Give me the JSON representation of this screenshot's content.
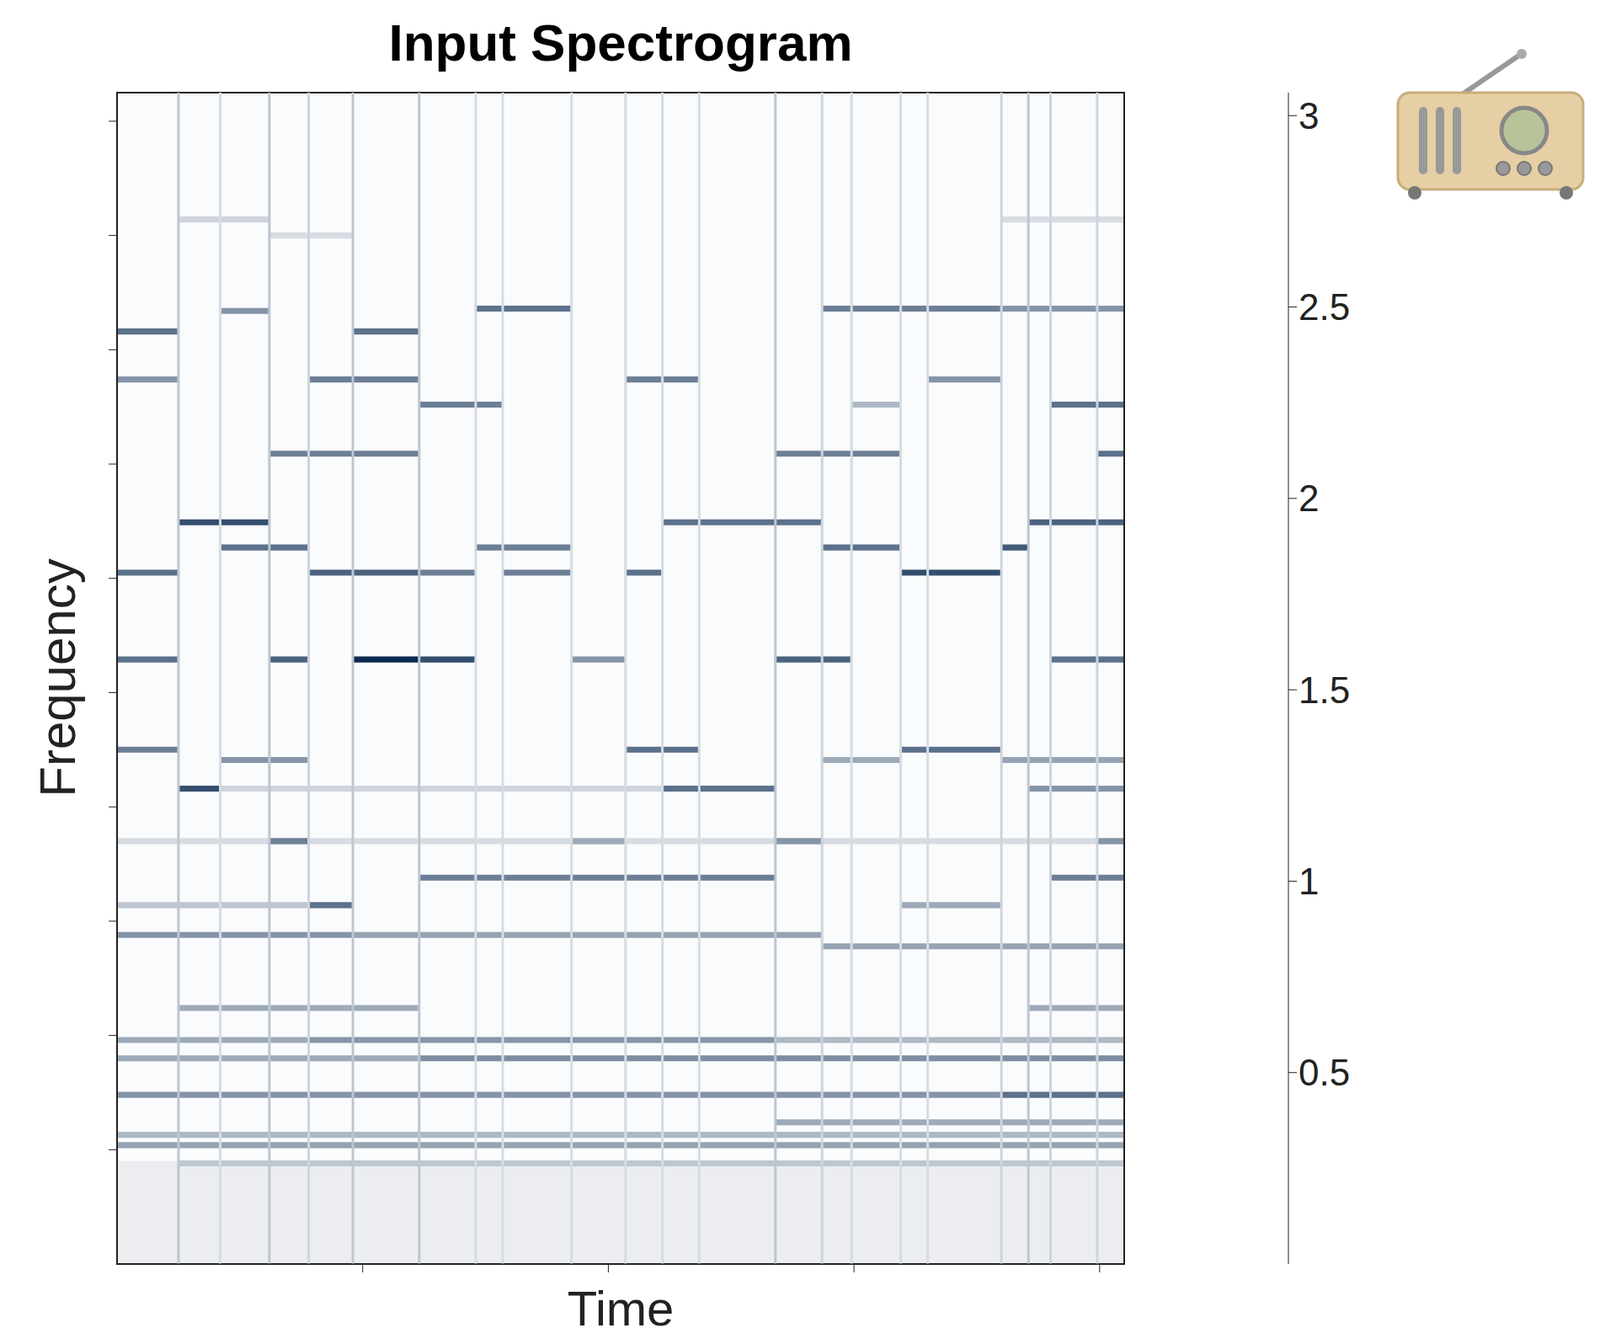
{
  "chart_data": {
    "type": "heatmap",
    "title": "Input Spectrogram",
    "x_label": "Time",
    "y_label": "Frequency",
    "xlim": [
      0,
      4.1
    ],
    "xticks": [
      1,
      2,
      3,
      4
    ],
    "ylim": [
      0,
      10.25
    ],
    "yticks": [
      1,
      2,
      3,
      4,
      5,
      6,
      7,
      8,
      9,
      10
    ],
    "tick_labels": false,
    "color": "#06264d",
    "color_range": [
      0,
      3.06
    ],
    "color_ticks": [
      0.5,
      1,
      1.5,
      2,
      2.5,
      3
    ],
    "background": [
      {
        "t0": 0,
        "t1": 4.1,
        "f0": 0,
        "f1": 10.25,
        "v": 0.06
      },
      {
        "t0": 0,
        "t1": 4.1,
        "f0": 0,
        "f1": 0.9,
        "v": 0.25
      }
    ],
    "onsets": [
      {
        "t": 0.25,
        "v": 0.8
      },
      {
        "t": 0.42,
        "v": 0.5
      },
      {
        "t": 0.62,
        "v": 0.8
      },
      {
        "t": 0.78,
        "v": 0.6
      },
      {
        "t": 0.96,
        "v": 0.8
      },
      {
        "t": 1.23,
        "v": 0.8
      },
      {
        "t": 1.46,
        "v": 0.5
      },
      {
        "t": 1.57,
        "v": 0.5
      },
      {
        "t": 1.85,
        "v": 0.5
      },
      {
        "t": 2.07,
        "v": 0.5
      },
      {
        "t": 2.22,
        "v": 0.5
      },
      {
        "t": 2.37,
        "v": 0.5
      },
      {
        "t": 2.68,
        "v": 0.8
      },
      {
        "t": 2.87,
        "v": 0.6
      },
      {
        "t": 2.99,
        "v": 0.5
      },
      {
        "t": 3.19,
        "v": 0.5
      },
      {
        "t": 3.3,
        "v": 0.5
      },
      {
        "t": 3.6,
        "v": 0.6
      },
      {
        "t": 3.71,
        "v": 0.8
      },
      {
        "t": 3.8,
        "v": 0.6
      },
      {
        "t": 3.99,
        "v": 0.6
      }
    ],
    "lines": [
      {
        "t0": 0.25,
        "t1": 0.62,
        "f": 9.14,
        "v": 0.6
      },
      {
        "t0": 3.6,
        "t1": 4.1,
        "f": 9.14,
        "v": 0.5
      },
      {
        "t0": 0.62,
        "t1": 0.96,
        "f": 9.0,
        "v": 0.5
      },
      {
        "t0": 0,
        "t1": 0.25,
        "f": 8.16,
        "v": 2.0
      },
      {
        "t0": 0.96,
        "t1": 1.23,
        "f": 8.16,
        "v": 2.0
      },
      {
        "t0": 0.42,
        "t1": 0.62,
        "f": 8.34,
        "v": 1.5
      },
      {
        "t0": 1.46,
        "t1": 1.85,
        "f": 8.36,
        "v": 2.0
      },
      {
        "t0": 2.87,
        "t1": 3.6,
        "f": 8.36,
        "v": 1.8
      },
      {
        "t0": 3.6,
        "t1": 4.1,
        "f": 8.36,
        "v": 1.5
      },
      {
        "t0": 0,
        "t1": 0.25,
        "f": 7.74,
        "v": 1.5
      },
      {
        "t0": 0.78,
        "t1": 1.23,
        "f": 7.74,
        "v": 1.8
      },
      {
        "t0": 2.07,
        "t1": 2.37,
        "f": 7.74,
        "v": 1.8
      },
      {
        "t0": 3.3,
        "t1": 3.6,
        "f": 7.74,
        "v": 1.5
      },
      {
        "t0": 1.23,
        "t1": 1.57,
        "f": 7.52,
        "v": 1.8
      },
      {
        "t0": 2.99,
        "t1": 3.19,
        "f": 7.52,
        "v": 1.0
      },
      {
        "t0": 3.8,
        "t1": 4.1,
        "f": 7.52,
        "v": 2.0
      },
      {
        "t0": 0.62,
        "t1": 1.23,
        "f": 7.09,
        "v": 1.8
      },
      {
        "t0": 2.68,
        "t1": 3.19,
        "f": 7.09,
        "v": 1.8
      },
      {
        "t0": 3.99,
        "t1": 4.1,
        "f": 7.09,
        "v": 2.0
      },
      {
        "t0": 0.25,
        "t1": 0.62,
        "f": 6.49,
        "v": 2.5
      },
      {
        "t0": 2.22,
        "t1": 2.87,
        "f": 6.49,
        "v": 2.0
      },
      {
        "t0": 3.71,
        "t1": 4.1,
        "f": 6.49,
        "v": 2.2
      },
      {
        "t0": 0.42,
        "t1": 0.78,
        "f": 6.27,
        "v": 2.0
      },
      {
        "t0": 1.46,
        "t1": 1.85,
        "f": 6.27,
        "v": 1.8
      },
      {
        "t0": 2.87,
        "t1": 3.19,
        "f": 6.27,
        "v": 2.0
      },
      {
        "t0": 3.6,
        "t1": 3.71,
        "f": 6.27,
        "v": 2.3
      },
      {
        "t0": 0,
        "t1": 0.25,
        "f": 6.05,
        "v": 2.0
      },
      {
        "t0": 0.78,
        "t1": 1.23,
        "f": 6.05,
        "v": 2.2
      },
      {
        "t0": 1.23,
        "t1": 1.46,
        "f": 6.05,
        "v": 1.8
      },
      {
        "t0": 1.57,
        "t1": 1.85,
        "f": 6.05,
        "v": 1.8
      },
      {
        "t0": 2.07,
        "t1": 2.22,
        "f": 6.05,
        "v": 2.0
      },
      {
        "t0": 3.19,
        "t1": 3.6,
        "f": 6.05,
        "v": 2.5
      },
      {
        "t0": 0,
        "t1": 0.25,
        "f": 5.29,
        "v": 2.0
      },
      {
        "t0": 0.62,
        "t1": 0.78,
        "f": 5.29,
        "v": 2.2
      },
      {
        "t0": 0.96,
        "t1": 1.23,
        "f": 5.29,
        "v": 3.0
      },
      {
        "t0": 1.23,
        "t1": 1.46,
        "f": 5.29,
        "v": 2.5
      },
      {
        "t0": 1.85,
        "t1": 2.07,
        "f": 5.29,
        "v": 1.5
      },
      {
        "t0": 2.68,
        "t1": 2.99,
        "f": 5.29,
        "v": 2.2
      },
      {
        "t0": 3.8,
        "t1": 4.1,
        "f": 5.29,
        "v": 2.0
      },
      {
        "t0": 0,
        "t1": 0.25,
        "f": 4.5,
        "v": 1.8
      },
      {
        "t0": 2.07,
        "t1": 2.37,
        "f": 4.5,
        "v": 2.0
      },
      {
        "t0": 3.19,
        "t1": 3.6,
        "f": 4.5,
        "v": 2.0
      },
      {
        "t0": 0.42,
        "t1": 0.78,
        "f": 4.41,
        "v": 1.5
      },
      {
        "t0": 2.87,
        "t1": 3.19,
        "f": 4.41,
        "v": 1.2
      },
      {
        "t0": 3.6,
        "t1": 4.1,
        "f": 4.41,
        "v": 1.3
      },
      {
        "t0": 0.25,
        "t1": 0.42,
        "f": 4.16,
        "v": 2.5
      },
      {
        "t0": 0.42,
        "t1": 2.22,
        "f": 4.16,
        "v": 0.6
      },
      {
        "t0": 2.22,
        "t1": 2.68,
        "f": 4.16,
        "v": 2.0
      },
      {
        "t0": 3.71,
        "t1": 4.1,
        "f": 4.16,
        "v": 1.5
      },
      {
        "t0": 0,
        "t1": 4.1,
        "f": 3.7,
        "v": 0.5
      },
      {
        "t0": 0.62,
        "t1": 0.78,
        "f": 3.7,
        "v": 1.8
      },
      {
        "t0": 1.85,
        "t1": 2.07,
        "f": 3.7,
        "v": 1.2
      },
      {
        "t0": 2.68,
        "t1": 2.87,
        "f": 3.7,
        "v": 1.5
      },
      {
        "t0": 3.99,
        "t1": 4.1,
        "f": 3.7,
        "v": 1.5
      },
      {
        "t0": 1.23,
        "t1": 2.68,
        "f": 3.38,
        "v": 1.8
      },
      {
        "t0": 3.8,
        "t1": 4.1,
        "f": 3.38,
        "v": 1.8
      },
      {
        "t0": 0,
        "t1": 0.78,
        "f": 3.14,
        "v": 0.8
      },
      {
        "t0": 0.78,
        "t1": 0.96,
        "f": 3.14,
        "v": 2.0
      },
      {
        "t0": 3.19,
        "t1": 3.6,
        "f": 3.14,
        "v": 1.2
      },
      {
        "t0": 0,
        "t1": 0.96,
        "f": 2.88,
        "v": 1.5
      },
      {
        "t0": 0.96,
        "t1": 2.87,
        "f": 2.88,
        "v": 1.3
      },
      {
        "t0": 2.87,
        "t1": 4.1,
        "f": 2.78,
        "v": 1.3
      },
      {
        "t0": 0.25,
        "t1": 1.23,
        "f": 2.24,
        "v": 1.2
      },
      {
        "t0": 3.71,
        "t1": 4.1,
        "f": 2.24,
        "v": 1.2
      },
      {
        "t0": 0,
        "t1": 0.78,
        "f": 1.96,
        "v": 1.2
      },
      {
        "t0": 0.78,
        "t1": 2.68,
        "f": 1.96,
        "v": 1.5
      },
      {
        "t0": 2.68,
        "t1": 4.1,
        "f": 1.96,
        "v": 1.0
      },
      {
        "t0": 0,
        "t1": 1.23,
        "f": 1.8,
        "v": 1.2
      },
      {
        "t0": 1.23,
        "t1": 4.1,
        "f": 1.8,
        "v": 1.6
      },
      {
        "t0": 0,
        "t1": 3.6,
        "f": 1.48,
        "v": 1.5
      },
      {
        "t0": 3.6,
        "t1": 4.1,
        "f": 1.48,
        "v": 2.0
      },
      {
        "t0": 2.68,
        "t1": 4.1,
        "f": 1.24,
        "v": 1.2
      },
      {
        "t0": 0,
        "t1": 4.1,
        "f": 1.13,
        "v": 1.0
      },
      {
        "t0": 0,
        "t1": 4.1,
        "f": 1.04,
        "v": 1.3
      },
      {
        "t0": 0.25,
        "t1": 4.1,
        "f": 0.88,
        "v": 0.8
      }
    ]
  }
}
